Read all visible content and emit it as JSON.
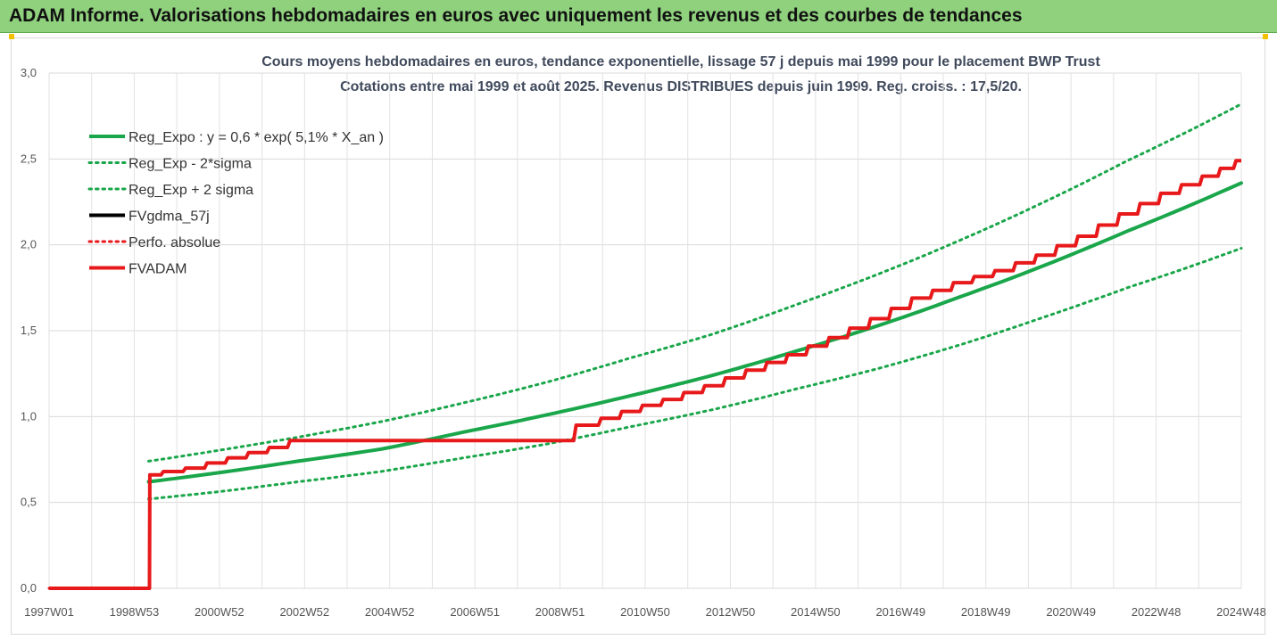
{
  "header": {
    "title": "ADAM Informe. Valorisations hebdomadaires en euros avec uniquement les revenus et des courbes de tendances",
    "background": "#8fd17d"
  },
  "chart_data": {
    "type": "line",
    "title": "Cours moyens hebdomadaires en euros, tendance exponentielle, lissage 57 j depuis mai 1999 pour le placement BWP Trust",
    "subtitle": "Cotations entre mai 1999 et août 2025. Revenus DISTRIBUES depuis juin 1999. Reg. croiss. : 17,5/20.",
    "xlabel": "",
    "ylabel": "",
    "x_tick_labels": [
      "1997W01",
      "1998W53",
      "2000W52",
      "2002W52",
      "2004W52",
      "2006W51",
      "2008W51",
      "2010W50",
      "2012W50",
      "2014W50",
      "2016W49",
      "2018W49",
      "2020W49",
      "2022W48",
      "2024W48"
    ],
    "xlim": [
      1997.0,
      2025.75
    ],
    "y_tick_labels": [
      "0,0",
      "0,5",
      "1,0",
      "1,5",
      "2,0",
      "2,5",
      "3,0"
    ],
    "ylim": [
      0,
      3
    ],
    "grid": true,
    "legend_position": "top-left",
    "legend": [
      {
        "label": "Reg_Expo : y = 0,6 * exp( 5,1% *  X_an )",
        "color": "#1aa64a",
        "style": "solid"
      },
      {
        "label": "Reg_Exp - 2*sigma",
        "color": "#1aa64a",
        "style": "dotted"
      },
      {
        "label": "Reg_Exp + 2 sigma",
        "color": "#1aa64a",
        "style": "dotted"
      },
      {
        "label": "FVgdma_57j",
        "color": "#000000",
        "style": "solid"
      },
      {
        "label": "Perfo. absolue",
        "color": "#e8191b",
        "style": "dotted"
      },
      {
        "label": "FVADAM",
        "color": "#e8191b",
        "style": "solid"
      }
    ],
    "series": [
      {
        "name": "Reg_Expo : y = 0,6 * exp( 5,1% *  X_an )",
        "color": "#1aa64a",
        "style": "solid",
        "x": [
          1999.4,
          2001,
          2003,
          2005,
          2007,
          2009,
          2011,
          2013,
          2015,
          2017,
          2019,
          2021,
          2023,
          2025.75
        ],
        "y": [
          0.62,
          0.67,
          0.74,
          0.81,
          0.91,
          1.01,
          1.12,
          1.24,
          1.38,
          1.53,
          1.7,
          1.88,
          2.08,
          2.36
        ]
      },
      {
        "name": "Reg_Exp - 2*sigma",
        "color": "#1aa64a",
        "style": "dotted",
        "x": [
          1999.4,
          2001,
          2003,
          2005,
          2007,
          2009,
          2011,
          2013,
          2015,
          2017,
          2019,
          2021,
          2023,
          2025.75
        ],
        "y": [
          0.52,
          0.56,
          0.62,
          0.68,
          0.76,
          0.84,
          0.94,
          1.04,
          1.16,
          1.28,
          1.42,
          1.58,
          1.75,
          1.98
        ]
      },
      {
        "name": "Reg_Exp + 2 sigma",
        "color": "#1aa64a",
        "style": "dotted",
        "x": [
          1999.4,
          2001,
          2003,
          2005,
          2007,
          2009,
          2011,
          2013,
          2015,
          2017,
          2019,
          2021,
          2023,
          2025.75
        ],
        "y": [
          0.74,
          0.8,
          0.88,
          0.97,
          1.08,
          1.2,
          1.34,
          1.48,
          1.65,
          1.83,
          2.03,
          2.25,
          2.49,
          2.82
        ]
      },
      {
        "name": "FVgdma_57j",
        "color": "#000000",
        "style": "solid",
        "x": [
          1997.0,
          1999.42,
          1999.43,
          2000.5,
          2001.5,
          2002.5,
          2003.0,
          2005,
          2007,
          2009.3,
          2010.0,
          2011.0,
          2012.0,
          2013.0,
          2014.0,
          2015.0,
          2016.0,
          2017.0,
          2018.0,
          2019.0,
          2020.0,
          2021.0,
          2022.0,
          2023.0,
          2024.0,
          2025.0,
          2025.75
        ],
        "y": [
          0.0,
          0.0,
          0.66,
          0.7,
          0.76,
          0.82,
          0.86,
          0.86,
          0.86,
          0.86,
          0.95,
          1.03,
          1.1,
          1.18,
          1.27,
          1.36,
          1.46,
          1.57,
          1.69,
          1.78,
          1.85,
          1.94,
          2.05,
          2.18,
          2.3,
          2.4,
          2.49
        ]
      },
      {
        "name": "Perfo. absolue",
        "color": "#e8191b",
        "style": "dotted",
        "x": [
          1997.0,
          1999.42,
          1999.43,
          2000.5,
          2001.5,
          2002.5,
          2003.0,
          2005,
          2007,
          2009.3,
          2010.0,
          2011.0,
          2012.0,
          2013.0,
          2014.0,
          2015.0,
          2016.0,
          2017.0,
          2018.0,
          2019.0,
          2020.0,
          2021.0,
          2022.0,
          2023.0,
          2024.0,
          2025.0,
          2025.75
        ],
        "y": [
          0.0,
          0.0,
          0.66,
          0.7,
          0.76,
          0.82,
          0.86,
          0.86,
          0.86,
          0.86,
          0.95,
          1.03,
          1.1,
          1.18,
          1.27,
          1.36,
          1.46,
          1.57,
          1.69,
          1.78,
          1.85,
          1.94,
          2.05,
          2.18,
          2.3,
          2.4,
          2.49
        ]
      },
      {
        "name": "FVADAM",
        "color": "#e8191b",
        "style": "step",
        "x": [
          1997.0,
          1999.42,
          1999.43,
          2000.5,
          2001.5,
          2002.5,
          2003.0,
          2005,
          2007,
          2009.3,
          2010.0,
          2011.0,
          2012.0,
          2013.0,
          2014.0,
          2015.0,
          2016.0,
          2017.0,
          2018.0,
          2019.0,
          2020.0,
          2021.0,
          2022.0,
          2023.0,
          2024.0,
          2025.0,
          2025.75
        ],
        "y": [
          0.0,
          0.0,
          0.66,
          0.7,
          0.76,
          0.82,
          0.86,
          0.86,
          0.86,
          0.86,
          0.95,
          1.03,
          1.1,
          1.18,
          1.27,
          1.36,
          1.46,
          1.57,
          1.69,
          1.78,
          1.85,
          1.94,
          2.05,
          2.18,
          2.3,
          2.4,
          2.49
        ]
      }
    ]
  }
}
